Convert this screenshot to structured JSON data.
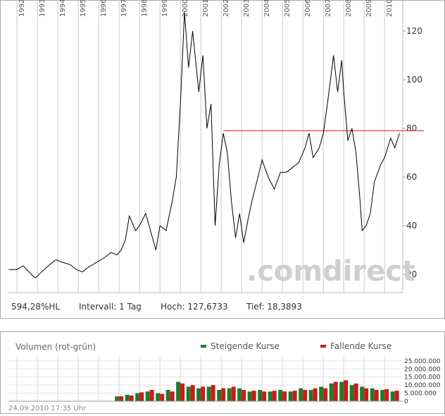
{
  "chart_data": [
    {
      "type": "line",
      "x": [
        1991.6,
        1992.0,
        1992.3,
        1992.7,
        1992.9,
        1993.2,
        1993.6,
        1993.9,
        1994.2,
        1994.6,
        1994.9,
        1995.2,
        1995.5,
        1995.9,
        1996.3,
        1996.6,
        1996.9,
        1997.1,
        1997.3,
        1997.5,
        1997.8,
        1998.0,
        1998.3,
        1998.6,
        1998.8,
        1999.0,
        1999.3,
        1999.6,
        1999.8,
        2000.0,
        2000.2,
        2000.4,
        2000.6,
        2000.9,
        2001.1,
        2001.3,
        2001.5,
        2001.7,
        2001.9,
        2002.1,
        2002.3,
        2002.5,
        2002.7,
        2002.9,
        2003.1,
        2003.3,
        2003.5,
        2003.8,
        2004.0,
        2004.3,
        2004.6,
        2004.9,
        2005.2,
        2005.5,
        2005.8,
        2006.1,
        2006.3,
        2006.5,
        2006.8,
        2007.0,
        2007.2,
        2007.5,
        2007.7,
        2007.9,
        2008.0,
        2008.2,
        2008.4,
        2008.6,
        2008.8,
        2008.9,
        2009.1,
        2009.3,
        2009.5,
        2009.8,
        2010.0,
        2010.3,
        2010.5,
        2010.73
      ],
      "values": [
        22,
        22,
        23.5,
        20,
        18.5,
        21,
        24,
        26,
        25,
        24,
        22,
        21,
        23,
        25,
        27,
        29,
        28,
        30,
        34,
        44,
        38,
        40,
        45,
        36,
        30,
        40,
        38,
        50,
        60,
        90,
        127.7,
        105,
        120,
        95,
        110,
        80,
        90,
        40,
        65,
        78,
        70,
        50,
        35,
        45,
        33,
        42,
        50,
        60,
        67,
        60,
        55,
        62,
        62,
        64,
        66,
        72,
        78,
        68,
        72,
        78,
        90,
        110,
        95,
        108,
        95,
        75,
        80,
        70,
        50,
        38,
        40,
        45,
        58,
        65,
        68,
        76,
        72,
        78
      ],
      "color": "#000000",
      "xlim": [
        1991.58,
        2010.89
      ],
      "xticks": [
        1992,
        1993,
        1994,
        1995,
        1996,
        1997,
        1998,
        1999,
        2000,
        2001,
        2002,
        2003,
        2004,
        2005,
        2006,
        2007,
        2008,
        2009,
        2010
      ],
      "ylim": [
        12.5,
        132.75
      ],
      "yticks": [
        20,
        40,
        60,
        80,
        100,
        120
      ],
      "hline": {
        "value": 79,
        "from": 2002.1,
        "color": "#dd2222"
      },
      "watermark": ".comdirect",
      "stats": [
        "594,28%HL",
        "Intervall: 1 Tag",
        "Hoch: 127,6733",
        "Tief: 18,3893"
      ]
    },
    {
      "type": "bar",
      "title": "Volumen (rot-grün)",
      "x": [
        1997.0,
        1997.5,
        1998.0,
        1998.5,
        1999.0,
        1999.5,
        2000.0,
        2000.5,
        2001.0,
        2001.5,
        2002.0,
        2002.5,
        2003.0,
        2003.5,
        2004.0,
        2004.5,
        2005.0,
        2005.5,
        2006.0,
        2006.5,
        2007.0,
        2007.5,
        2008.0,
        2008.5,
        2009.0,
        2009.5,
        2010.0,
        2010.5
      ],
      "series": [
        {
          "name": "Steigende Kurse",
          "color": "#1e7b2c",
          "values": [
            3000000,
            4000000,
            5000000,
            6000000,
            5000000,
            7000000,
            12000000,
            9000000,
            8000000,
            9000000,
            7000000,
            8000000,
            8000000,
            6000000,
            7000000,
            6000000,
            7000000,
            6000000,
            8000000,
            7000000,
            9000000,
            11000000,
            12000000,
            10000000,
            9000000,
            8000000,
            7000000,
            6000000
          ]
        },
        {
          "name": "Fallende Kurse",
          "color": "#cc1a1a",
          "values": [
            3000000,
            3500000,
            5500000,
            7000000,
            4500000,
            6000000,
            11000000,
            10000000,
            9000000,
            10000000,
            8000000,
            9000000,
            7000000,
            6500000,
            6000000,
            6500000,
            6000000,
            6500000,
            7000000,
            8000000,
            8000000,
            12000000,
            13000000,
            11000000,
            8000000,
            7000000,
            7500000,
            6500000
          ]
        }
      ],
      "xlim": [
        1991.58,
        2010.89
      ],
      "ylim": [
        0,
        28000000
      ],
      "yticks": [
        0,
        {
          "value": 5000000,
          "label": "5.000.000"
        },
        {
          "value": 10000000,
          "label": "10.000.000"
        },
        {
          "value": 15000000,
          "label": "15.000.000"
        },
        {
          "value": 20000000,
          "label": "20.000.000"
        },
        {
          "value": 25000000,
          "label": "25.000.000"
        }
      ],
      "footnote": "24.09.2010 17:35 Uhr"
    }
  ]
}
